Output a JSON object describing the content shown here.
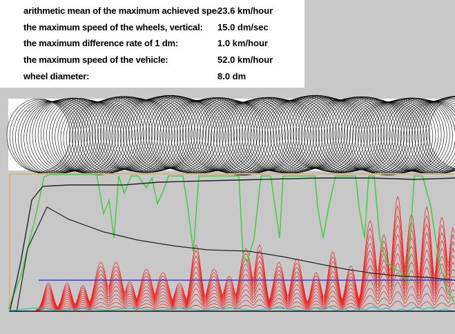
{
  "window": {
    "background": "#c8c8c8"
  },
  "info_panel": {
    "rows": [
      {
        "label": "arithmetic mean of the maximum achieved speed:",
        "value": "23.6 km/hour"
      },
      {
        "label": "the maximum speed of the wheels, vertical:",
        "value": "15.0 dm/sec"
      },
      {
        "label": "the maximum difference rate of 1 dm:",
        "value": "1.0 km/hour"
      },
      {
        "label": "the maximum speed of the vehicle:",
        "value": "52.0 km/hour"
      },
      {
        "label": "wheel diameter:",
        "value": "8.0 dm"
      }
    ]
  },
  "graph": {
    "colors": {
      "wheels": "#000000",
      "green_line": "#4ccb4c",
      "black_line": "#222222",
      "red_lines": "#ee2020",
      "blue_line": "#3a3ad8",
      "cyan_line": "#29c4c4",
      "baseline": "#111111",
      "border": "#d2b48c"
    }
  }
}
